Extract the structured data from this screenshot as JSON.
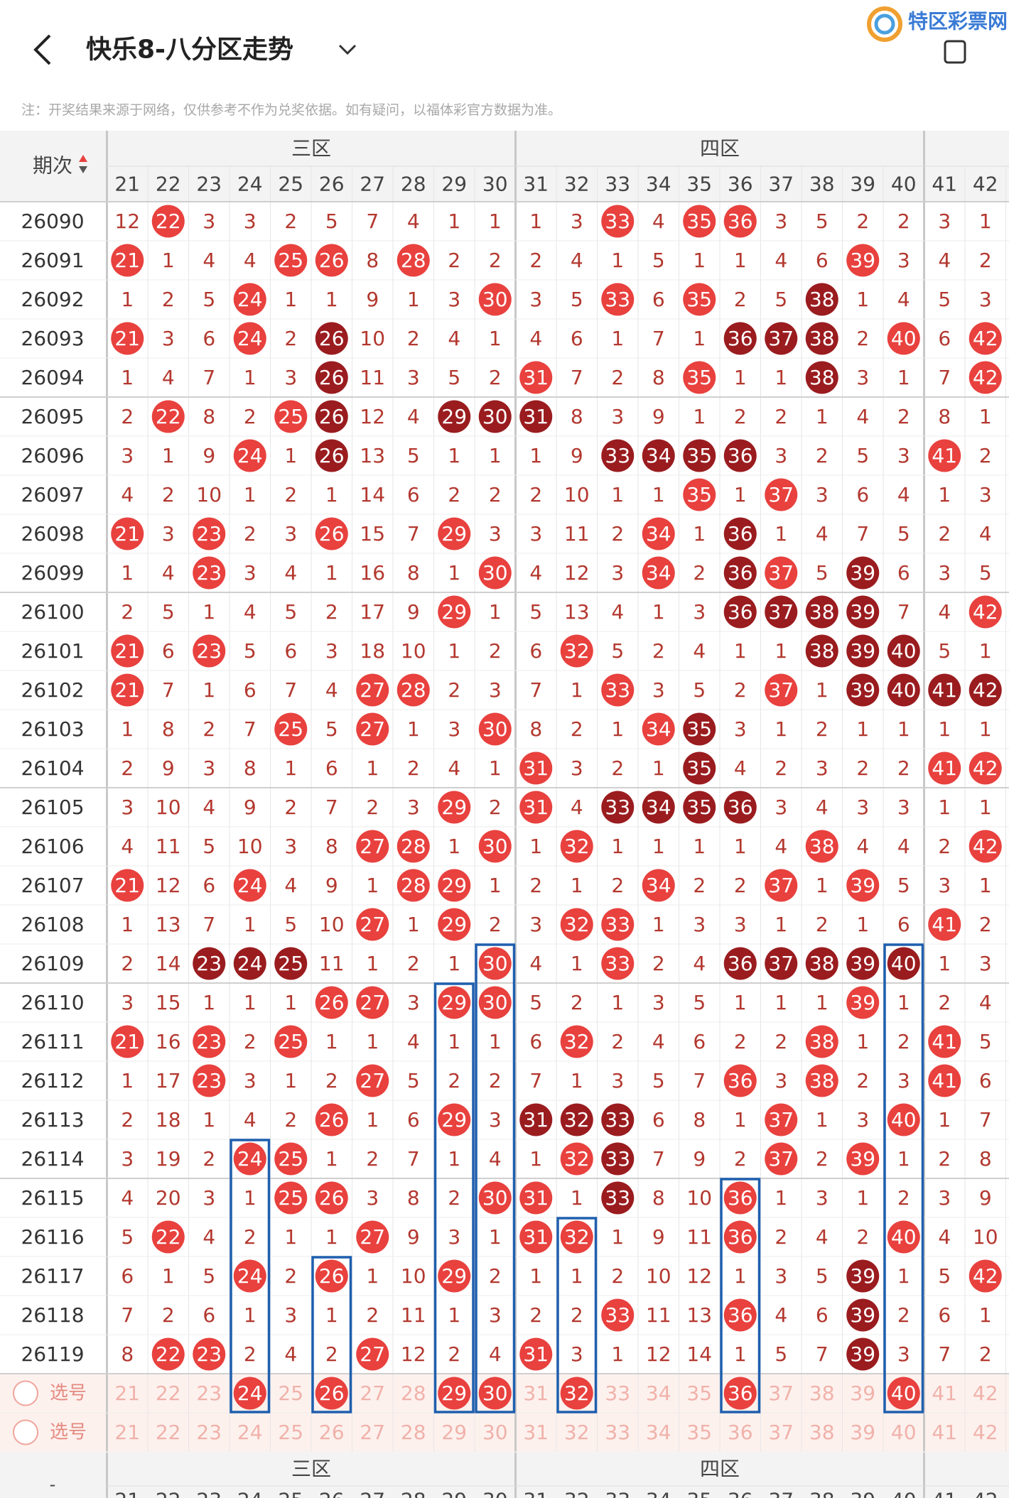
{
  "header": {
    "title": "快乐8-八分区走势",
    "logo": "特区彩票网"
  },
  "note": "注：开奖结果来源于网络，仅供参考不作为兑奖依据。如有疑问，以福体彩官方数据为准。",
  "table": {
    "issue_header": "期次",
    "regions": [
      "三区",
      "四区"
    ],
    "columns": [
      21,
      22,
      23,
      24,
      25,
      26,
      27,
      28,
      29,
      30,
      31,
      32,
      33,
      34,
      35,
      36,
      37,
      38,
      39,
      40,
      41,
      42
    ],
    "rows": [
      {
        "issue": "26090",
        "values": [
          12,
          22,
          3,
          3,
          2,
          5,
          7,
          4,
          1,
          1,
          1,
          3,
          33,
          4,
          35,
          36,
          3,
          5,
          2,
          2,
          3,
          1
        ],
        "dark": []
      },
      {
        "issue": "26091",
        "values": [
          21,
          1,
          4,
          4,
          25,
          26,
          8,
          28,
          2,
          2,
          2,
          4,
          1,
          5,
          1,
          1,
          4,
          6,
          39,
          3,
          4,
          2
        ],
        "dark": []
      },
      {
        "issue": "26092",
        "values": [
          1,
          2,
          5,
          24,
          1,
          1,
          9,
          1,
          3,
          30,
          3,
          5,
          33,
          6,
          35,
          2,
          5,
          38,
          1,
          4,
          5,
          3
        ],
        "dark": [
          38
        ]
      },
      {
        "issue": "26093",
        "values": [
          21,
          3,
          6,
          24,
          2,
          26,
          10,
          2,
          4,
          1,
          4,
          6,
          1,
          7,
          1,
          36,
          37,
          38,
          2,
          40,
          6,
          42
        ],
        "dark": [
          26,
          36,
          37,
          38
        ]
      },
      {
        "issue": "26094",
        "values": [
          1,
          4,
          7,
          1,
          3,
          26,
          11,
          3,
          5,
          2,
          31,
          7,
          2,
          8,
          35,
          1,
          1,
          38,
          3,
          1,
          7,
          42
        ],
        "dark": [
          26,
          38
        ]
      },
      {
        "issue": "26095",
        "values": [
          2,
          22,
          8,
          2,
          25,
          26,
          12,
          4,
          29,
          30,
          31,
          8,
          3,
          9,
          1,
          2,
          2,
          1,
          4,
          2,
          8,
          1
        ],
        "dark": [
          26,
          29,
          30,
          31
        ]
      },
      {
        "issue": "26096",
        "values": [
          3,
          1,
          9,
          24,
          1,
          26,
          13,
          5,
          1,
          1,
          1,
          9,
          33,
          34,
          35,
          36,
          3,
          2,
          5,
          3,
          41,
          2
        ],
        "dark": [
          26,
          33,
          34,
          35,
          36
        ]
      },
      {
        "issue": "26097",
        "values": [
          4,
          2,
          10,
          1,
          2,
          1,
          14,
          6,
          2,
          2,
          2,
          10,
          1,
          1,
          35,
          1,
          37,
          3,
          6,
          4,
          1,
          3
        ],
        "dark": []
      },
      {
        "issue": "26098",
        "values": [
          21,
          3,
          23,
          2,
          3,
          26,
          15,
          7,
          29,
          3,
          3,
          11,
          2,
          34,
          1,
          36,
          1,
          4,
          7,
          5,
          2,
          4
        ],
        "dark": [
          36
        ]
      },
      {
        "issue": "26099",
        "values": [
          1,
          4,
          23,
          3,
          4,
          1,
          16,
          8,
          1,
          30,
          4,
          12,
          3,
          34,
          2,
          36,
          37,
          5,
          39,
          6,
          3,
          5
        ],
        "dark": [
          36,
          39
        ]
      },
      {
        "issue": "26100",
        "values": [
          2,
          5,
          1,
          4,
          5,
          2,
          17,
          9,
          29,
          1,
          5,
          13,
          4,
          1,
          3,
          36,
          37,
          38,
          39,
          7,
          4,
          42
        ],
        "dark": [
          36,
          37,
          38,
          39
        ]
      },
      {
        "issue": "26101",
        "values": [
          21,
          6,
          23,
          5,
          6,
          3,
          18,
          10,
          1,
          2,
          6,
          32,
          5,
          2,
          4,
          1,
          1,
          38,
          39,
          40,
          5,
          1
        ],
        "dark": [
          38,
          39,
          40
        ]
      },
      {
        "issue": "26102",
        "values": [
          21,
          7,
          1,
          6,
          7,
          4,
          27,
          28,
          2,
          3,
          7,
          1,
          33,
          3,
          5,
          2,
          37,
          1,
          39,
          40,
          41,
          42
        ],
        "dark": [
          39,
          40,
          41,
          42
        ]
      },
      {
        "issue": "26103",
        "values": [
          1,
          8,
          2,
          7,
          25,
          5,
          27,
          1,
          3,
          30,
          8,
          2,
          1,
          34,
          35,
          3,
          1,
          2,
          1,
          1,
          1,
          1
        ],
        "dark": [
          35
        ]
      },
      {
        "issue": "26104",
        "values": [
          2,
          9,
          3,
          8,
          1,
          6,
          1,
          2,
          4,
          1,
          31,
          3,
          2,
          1,
          35,
          4,
          2,
          3,
          2,
          2,
          41,
          42
        ],
        "dark": [
          35
        ]
      },
      {
        "issue": "26105",
        "values": [
          3,
          10,
          4,
          9,
          2,
          7,
          2,
          3,
          29,
          2,
          31,
          4,
          33,
          34,
          35,
          36,
          3,
          4,
          3,
          3,
          1,
          1
        ],
        "dark": [
          33,
          34,
          35,
          36
        ]
      },
      {
        "issue": "26106",
        "values": [
          4,
          11,
          5,
          10,
          3,
          8,
          27,
          28,
          1,
          30,
          1,
          32,
          1,
          1,
          1,
          1,
          4,
          38,
          4,
          4,
          2,
          42
        ],
        "dark": []
      },
      {
        "issue": "26107",
        "values": [
          21,
          12,
          6,
          24,
          4,
          9,
          1,
          28,
          29,
          1,
          2,
          1,
          2,
          34,
          2,
          2,
          37,
          1,
          39,
          5,
          3,
          1
        ],
        "dark": []
      },
      {
        "issue": "26108",
        "values": [
          1,
          13,
          7,
          1,
          5,
          10,
          27,
          1,
          29,
          2,
          3,
          32,
          33,
          1,
          3,
          3,
          1,
          2,
          1,
          6,
          41,
          2
        ],
        "dark": []
      },
      {
        "issue": "26109",
        "values": [
          2,
          14,
          23,
          24,
          25,
          11,
          1,
          2,
          1,
          30,
          4,
          1,
          33,
          2,
          4,
          36,
          37,
          38,
          39,
          40,
          1,
          3
        ],
        "dark": [
          23,
          24,
          25,
          36,
          37,
          38,
          39,
          40
        ]
      },
      {
        "issue": "26110",
        "values": [
          3,
          15,
          1,
          1,
          1,
          26,
          27,
          3,
          29,
          30,
          5,
          2,
          1,
          3,
          5,
          1,
          1,
          1,
          39,
          1,
          2,
          4
        ],
        "dark": []
      },
      {
        "issue": "26111",
        "values": [
          21,
          16,
          23,
          2,
          25,
          1,
          1,
          4,
          1,
          1,
          6,
          32,
          2,
          4,
          6,
          2,
          2,
          38,
          1,
          2,
          41,
          5
        ],
        "dark": []
      },
      {
        "issue": "26112",
        "values": [
          1,
          17,
          23,
          3,
          1,
          2,
          27,
          5,
          2,
          2,
          7,
          1,
          3,
          5,
          7,
          36,
          3,
          38,
          2,
          3,
          41,
          6
        ],
        "dark": []
      },
      {
        "issue": "26113",
        "values": [
          2,
          18,
          1,
          4,
          2,
          26,
          1,
          6,
          29,
          3,
          31,
          32,
          33,
          6,
          8,
          1,
          37,
          1,
          3,
          40,
          1,
          7
        ],
        "dark": [
          31,
          32,
          33
        ]
      },
      {
        "issue": "26114",
        "values": [
          3,
          19,
          2,
          24,
          25,
          1,
          2,
          7,
          1,
          4,
          1,
          32,
          33,
          7,
          9,
          2,
          37,
          2,
          39,
          1,
          2,
          8
        ],
        "dark": [
          33
        ]
      },
      {
        "issue": "26115",
        "values": [
          4,
          20,
          3,
          1,
          25,
          26,
          3,
          8,
          2,
          30,
          31,
          1,
          33,
          8,
          10,
          36,
          1,
          3,
          1,
          2,
          3,
          9
        ],
        "dark": [
          33
        ]
      },
      {
        "issue": "26116",
        "values": [
          5,
          22,
          4,
          2,
          1,
          1,
          27,
          9,
          3,
          1,
          31,
          32,
          1,
          9,
          11,
          36,
          2,
          4,
          2,
          40,
          4,
          10
        ],
        "dark": []
      },
      {
        "issue": "26117",
        "values": [
          6,
          1,
          5,
          24,
          2,
          26,
          1,
          10,
          29,
          2,
          1,
          1,
          2,
          10,
          12,
          1,
          3,
          5,
          39,
          1,
          5,
          42
        ],
        "dark": [
          39
        ]
      },
      {
        "issue": "26118",
        "values": [
          7,
          2,
          6,
          1,
          3,
          1,
          2,
          11,
          1,
          3,
          2,
          2,
          33,
          11,
          13,
          36,
          4,
          6,
          39,
          2,
          6,
          1
        ],
        "dark": [
          39
        ]
      },
      {
        "issue": "26119",
        "values": [
          8,
          22,
          23,
          2,
          4,
          2,
          27,
          12,
          2,
          4,
          31,
          3,
          1,
          12,
          14,
          1,
          5,
          7,
          39,
          3,
          7,
          2
        ],
        "dark": [
          39
        ]
      }
    ],
    "select_label": "选号",
    "selected": [
      24,
      26,
      29,
      30,
      32,
      36,
      40
    ]
  },
  "footer": {
    "mark": "-"
  }
}
